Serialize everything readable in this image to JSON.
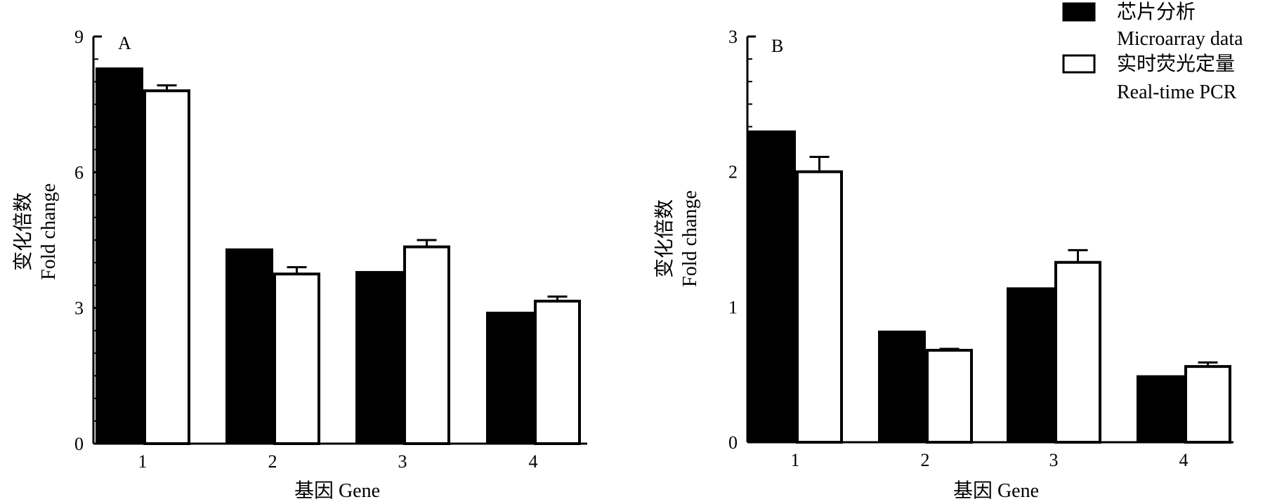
{
  "colors": {
    "microarray": "#000000",
    "realtime": "#ffffff",
    "stroke": "#000000"
  },
  "legend": {
    "items": [
      {
        "swatch": "filled",
        "label_cn": "芯片分析",
        "label_en": "Microarray data"
      },
      {
        "swatch": "hollow",
        "label_cn": "实时荧光定量",
        "label_en": "Real-time PCR"
      }
    ],
    "placement": "top-right"
  },
  "chart_data": [
    {
      "type": "bar",
      "panel": "A",
      "categories": [
        "1",
        "2",
        "3",
        "4"
      ],
      "series": [
        {
          "name": "Microarray data",
          "name_cn": "芯片分析",
          "values": [
            8.3,
            4.3,
            3.8,
            2.9
          ]
        },
        {
          "name": "Real-time PCR",
          "name_cn": "实时荧光定量",
          "values": [
            7.8,
            3.75,
            4.35,
            3.15
          ],
          "errors": [
            0.12,
            0.15,
            0.15,
            0.1
          ]
        }
      ],
      "xlabel": "基因 Gene",
      "ylabel_cn": "变化倍数",
      "ylabel_en": "Fold change",
      "ylim": [
        0,
        9
      ],
      "yticks": [
        0,
        3,
        6,
        9
      ],
      "grid": false
    },
    {
      "type": "bar",
      "panel": "B",
      "categories": [
        "1",
        "2",
        "3",
        "4"
      ],
      "series": [
        {
          "name": "Microarray data",
          "name_cn": "芯片分析",
          "values": [
            2.3,
            0.82,
            1.14,
            0.49
          ]
        },
        {
          "name": "Real-time PCR",
          "name_cn": "实时荧光定量",
          "values": [
            2.0,
            0.68,
            1.33,
            0.56
          ],
          "errors": [
            0.11,
            0.01,
            0.09,
            0.03
          ]
        }
      ],
      "xlabel": "基因 Gene",
      "ylabel_cn": "变化倍数",
      "ylabel_en": "Fold change",
      "ylim": [
        0,
        3
      ],
      "yticks": [
        0,
        1,
        2,
        3
      ],
      "grid": false
    }
  ]
}
